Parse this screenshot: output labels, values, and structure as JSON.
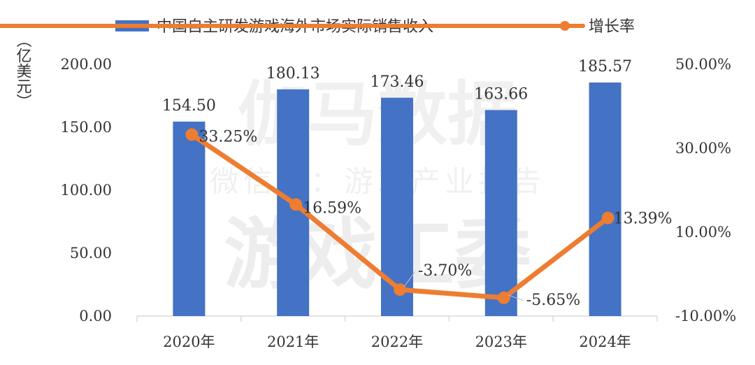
{
  "chart_data": {
    "type": "bar+line",
    "categories": [
      "2020年",
      "2021年",
      "2022年",
      "2023年",
      "2024年"
    ],
    "series": [
      {
        "name": "中国自主研发游戏海外市场实际销售收入",
        "type": "bar",
        "axis": "left",
        "color": "#4472C4",
        "values": [
          154.5,
          180.13,
          173.46,
          163.66,
          185.57
        ],
        "labels": [
          "154.50",
          "180.13",
          "173.46",
          "163.66",
          "185.57"
        ]
      },
      {
        "name": "增长率",
        "type": "line",
        "axis": "right",
        "color": "#ED7D31",
        "values": [
          33.25,
          16.59,
          -3.7,
          -5.65,
          13.39
        ],
        "labels": [
          "33.25%",
          "16.59%",
          "-3.70%",
          "-5.65%",
          "13.39%"
        ]
      }
    ],
    "ylabel": "（亿美元）",
    "ylim": [
      0,
      200
    ],
    "yticks": [
      "0.00",
      "50.00",
      "100.00",
      "150.00",
      "200.00"
    ],
    "y2lim": [
      -10,
      50
    ],
    "y2ticks": [
      "-10.00%",
      "10.00%",
      "30.00%",
      "50.00%"
    ],
    "legend_position": "top",
    "grid": false
  },
  "watermark": {
    "line1": "伽马数据",
    "line2": "微信号：游戏产业报告",
    "line3": "游戏工委"
  }
}
